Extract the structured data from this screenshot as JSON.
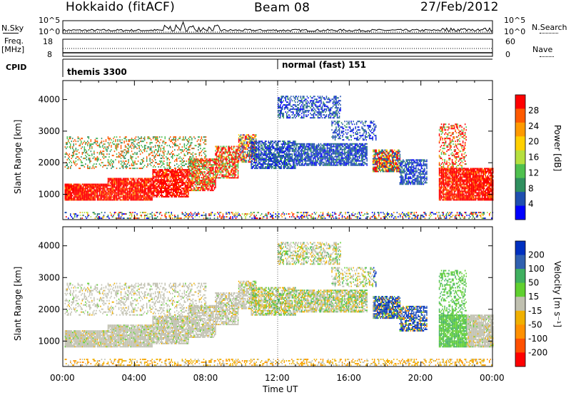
{
  "header": {
    "station": "Hokkaido (fitACF)",
    "beam": "Beam 08",
    "date": "27/Feb/2012"
  },
  "top_panels": {
    "nsky_label": "N.Sky",
    "nsky_ticks": [
      "10^5",
      "10^0"
    ],
    "nsearch_label": "N.Search",
    "freq_label": "Freq.",
    "freq_unit": "[MHz]",
    "freq_ticks": [
      "18",
      "8"
    ],
    "nave_label": "Nave",
    "nave_ticks": [
      "60",
      "0"
    ],
    "cpid_label": "CPID",
    "cpid_modes": [
      {
        "name": "themis 3300",
        "start": "00:00"
      },
      {
        "name": "normal (fast) 151",
        "start": "12:00"
      }
    ]
  },
  "colors": {
    "power": [
      "#0000ff",
      "#1f4fb0",
      "#2f8f5f",
      "#4fc04f",
      "#b6e03f",
      "#ffd000",
      "#ff9a00",
      "#ff5a00",
      "#ff0000"
    ],
    "velocity": [
      "#ff0000",
      "#ff5000",
      "#ff9000",
      "#f0b000",
      "#c0c0b0",
      "#60d030",
      "#40b060",
      "#3060b0",
      "#0030c0"
    ],
    "gray": "#c0c0b8"
  },
  "chart_data": [
    {
      "type": "heatmap",
      "title": "Power",
      "xlabel": "Time UT",
      "ylabel": "Slant Range [km]",
      "x_range": [
        "00:00",
        "24:00"
      ],
      "ylim": [
        200,
        4600
      ],
      "y_ticks": [
        "1000",
        "2000",
        "3000",
        "4000"
      ],
      "colorbar_label": "Power [dB]",
      "colorbar_ticks": [
        "28",
        "24",
        "20",
        "16",
        "12",
        "8",
        "4"
      ]
    },
    {
      "type": "heatmap",
      "title": "Velocity",
      "xlabel": "Time UT",
      "ylabel": "Slant Range [km]",
      "x_range": [
        "00:00",
        "24:00"
      ],
      "ylim": [
        200,
        4600
      ],
      "y_ticks": [
        "1000",
        "2000",
        "3000",
        "4000"
      ],
      "colorbar_label": "Velocity [m s⁻¹]",
      "colorbar_ticks": [
        "200",
        "100",
        "50",
        "15",
        "-15",
        "-50",
        "-100",
        "-200"
      ]
    }
  ],
  "x_axis": {
    "ticks": [
      "00:00",
      "04:00",
      "08:00",
      "12:00",
      "16:00",
      "20:00",
      "00:00"
    ],
    "label": "Time UT"
  }
}
